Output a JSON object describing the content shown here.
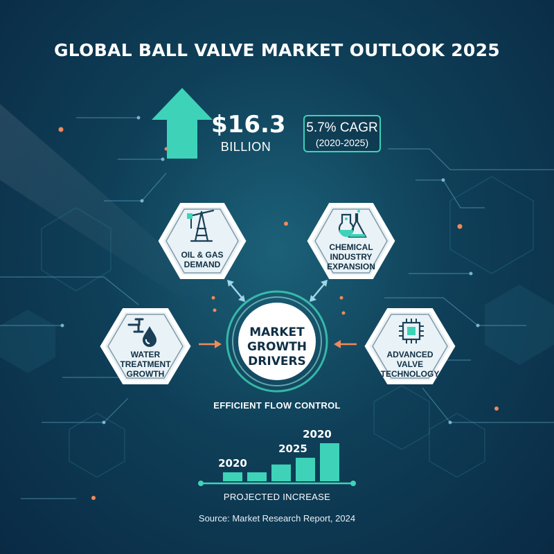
{
  "title": "GLOBAL BALL VALVE MARKET OUTLOOK 2025",
  "market_size": {
    "value": "$16.3",
    "unit": "BILLION"
  },
  "cagr": {
    "label": "5.7% CAGR",
    "period": "(2020-2025)"
  },
  "center": {
    "label": "MARKET GROWTH DRIVERS"
  },
  "drivers": [
    {
      "label": "OIL & GAS DEMAND",
      "icon": "oil-derrick-icon"
    },
    {
      "label": "CHEMICAL INDUSTRY EXPANSION",
      "icon": "flask-icon"
    },
    {
      "label": "WATER TREATMENT GROWTH",
      "icon": "water-tap-icon"
    },
    {
      "label": "ADVANCED VALVE TECHNOLOGY",
      "icon": "chip-icon"
    }
  ],
  "tagline": "EFFICIENT FLOW CONTROL",
  "chart_data": {
    "type": "bar",
    "categories": [
      "",
      "",
      "",
      "",
      ""
    ],
    "values": [
      8,
      8,
      15,
      21,
      34
    ],
    "bar_year_labels": [
      "2020",
      "2025",
      "2020"
    ],
    "footer_label": "PROJECTED INCREASE"
  },
  "source": "Source: Market Research Report, 2024",
  "colors": {
    "accent": "#3ed3b8",
    "arrow_orange": "#f08a5a",
    "arrow_blue": "#9fd6e8",
    "background_dark": "#0a2a44",
    "label_dark": "#0f2f45"
  }
}
